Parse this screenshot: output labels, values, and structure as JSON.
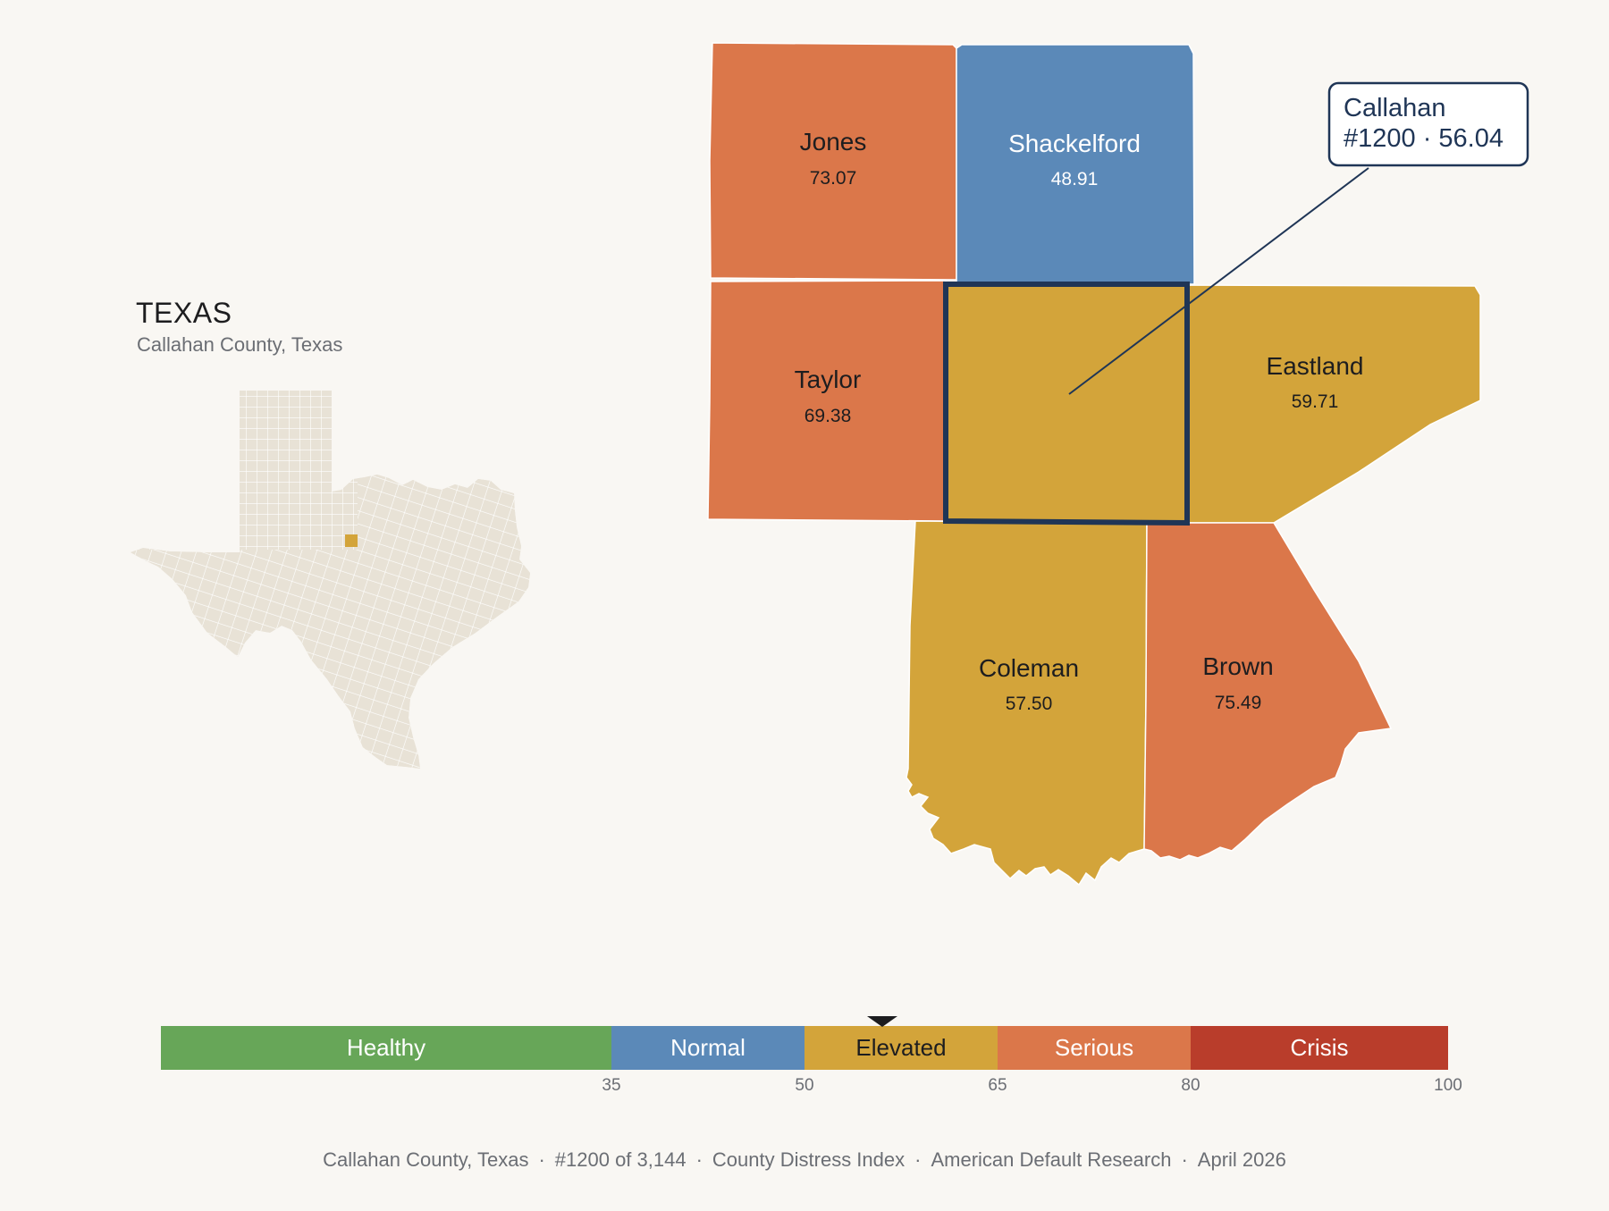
{
  "state": {
    "title": "TEXAS",
    "subtitle": "Callahan County, Texas"
  },
  "focus_county": {
    "name": "Callahan",
    "rank": "#1200",
    "score": "56.04",
    "band": "Elevated"
  },
  "callout": {
    "line1": "Callahan",
    "line2": "#1200 · 56.04"
  },
  "neighbors": [
    {
      "id": "jones",
      "name": "Jones",
      "score": "73.07",
      "band": "Serious"
    },
    {
      "id": "shackelford",
      "name": "Shackelford",
      "score": "48.91",
      "band": "Normal"
    },
    {
      "id": "taylor",
      "name": "Taylor",
      "score": "69.38",
      "band": "Serious"
    },
    {
      "id": "eastland",
      "name": "Eastland",
      "score": "59.71",
      "band": "Elevated"
    },
    {
      "id": "coleman",
      "name": "Coleman",
      "score": "57.50",
      "band": "Elevated"
    },
    {
      "id": "brown",
      "name": "Brown",
      "score": "75.49",
      "band": "Serious"
    }
  ],
  "colors": {
    "Healthy": "#67a658",
    "Normal": "#5b89b8",
    "Elevated": "#d3a43a",
    "Serious": "#db774a",
    "Crisis": "#b93d2b",
    "highlight_border": "#1f3556",
    "texas_fill": "#e8e2d6"
  },
  "legend": {
    "bands": [
      {
        "label": "Healthy",
        "from": 0,
        "to": 35
      },
      {
        "label": "Normal",
        "from": 35,
        "to": 50
      },
      {
        "label": "Elevated",
        "from": 50,
        "to": 65
      },
      {
        "label": "Serious",
        "from": 65,
        "to": 80
      },
      {
        "label": "Crisis",
        "from": 80,
        "to": 100
      }
    ],
    "ticks": [
      "35",
      "50",
      "65",
      "80",
      "100"
    ],
    "marker_value": 56.04
  },
  "footer": {
    "county": "Callahan County, Texas",
    "rank": "#1200 of 3,144",
    "index": "County Distress Index",
    "source": "American Default Research",
    "date": "April 2026"
  }
}
